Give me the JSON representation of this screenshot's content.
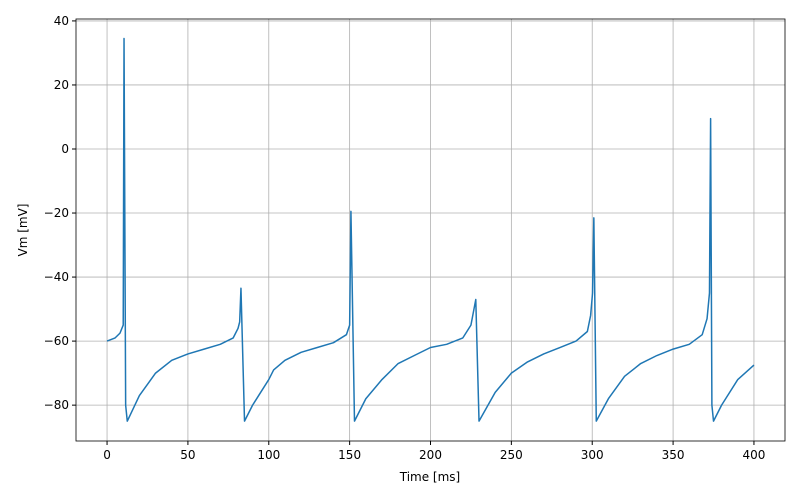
{
  "chart_data": {
    "type": "line",
    "x_label": "Time [ms]",
    "y_label": "Vm [mV]",
    "x": [
      0,
      5,
      8,
      10,
      10.5,
      11.5,
      12.5,
      20,
      30,
      40,
      50,
      60,
      70,
      78,
      81,
      82,
      82.8,
      85,
      90,
      95,
      100,
      103,
      110,
      120,
      130,
      140,
      148,
      150,
      150.8,
      153,
      160,
      170,
      180,
      190,
      200,
      210,
      220,
      225,
      228,
      230,
      240,
      250,
      260,
      270,
      280,
      290,
      297,
      299,
      300.2,
      301,
      302.5,
      310,
      320,
      330,
      340,
      350,
      360,
      368,
      371,
      372.5,
      373.2,
      374,
      375,
      380,
      390,
      400
    ],
    "series": [
      {
        "name": "Vm",
        "color": "#1f77b4",
        "values": [
          -60,
          -59,
          -57.5,
          -55,
          34.5,
          -80,
          -85,
          -77,
          -70,
          -66,
          -64,
          -62.5,
          -61,
          -59,
          -56,
          -54,
          -43.5,
          -85,
          -80,
          -76,
          -72,
          -69,
          -66,
          -63.5,
          -62,
          -60.5,
          -58,
          -55,
          -19.5,
          -85,
          -78,
          -72,
          -67,
          -64.5,
          -62,
          -61,
          -59,
          -55,
          -47,
          -85,
          -76,
          -70,
          -66.5,
          -64,
          -62,
          -60,
          -57,
          -52,
          -45,
          -21.5,
          -85,
          -78,
          -71,
          -67,
          -64.5,
          -62.5,
          -61,
          -58,
          -53,
          -45,
          9.5,
          -80,
          -85,
          -80,
          -72,
          -67.5
        ]
      }
    ],
    "xlim": [
      -19.2,
      419.2
    ],
    "ylim": [
      -91.2,
      40.6
    ],
    "xticks": [
      0,
      50,
      100,
      150,
      200,
      250,
      300,
      350,
      400
    ],
    "yticks": [
      {
        "value": -80,
        "label": "−80"
      },
      {
        "value": -60,
        "label": "−60"
      },
      {
        "value": -40,
        "label": "−40"
      },
      {
        "value": -20,
        "label": "−20"
      },
      0,
      20,
      40
    ],
    "grid": true
  }
}
